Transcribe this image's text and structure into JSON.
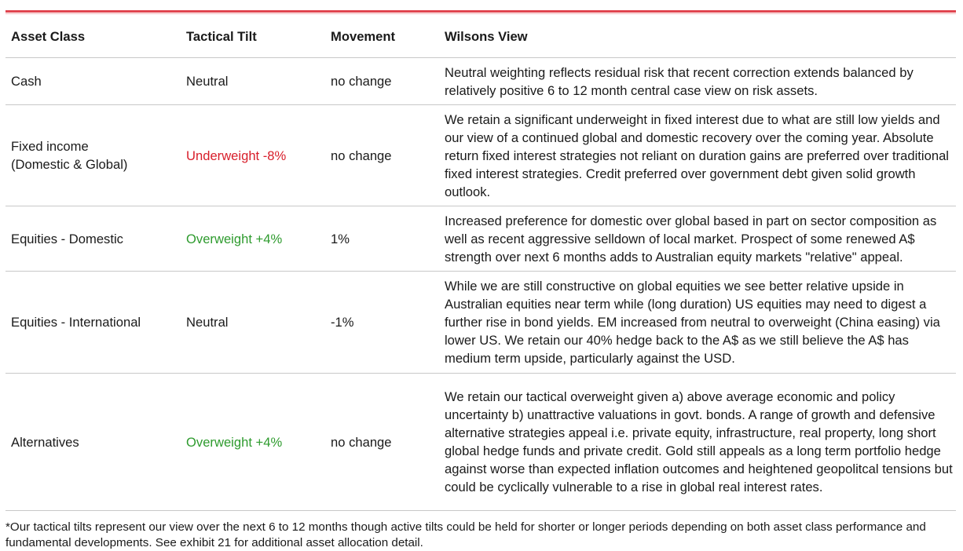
{
  "table": {
    "header": [
      "Asset Class",
      "Tactical Tilt",
      "Movement",
      "Wilsons View"
    ],
    "rows": [
      [
        "Cash",
        "Neutral",
        "no change",
        "Neutral weighting reflects residual risk that recent correction extends balanced by relatively positive 6 to 12 month central case view on risk assets."
      ],
      [
        "Fixed income (Domestic & Global)",
        "Underweight -8%",
        "no change",
        "We retain a significant underweight in fixed interest due to what are still low yields and our view of a continued global and domestic recovery over the coming year. Absolute return fixed interest strategies not reliant on duration gains  are preferred over traditional fixed interest strategies. Credit preferred over government debt given solid growth outlook."
      ],
      [
        "Equities - Domestic",
        "Overweight +4%",
        "1%",
        "Increased preference for domestic over global based in part on sector composition as well as recent aggressive selldown of local market. Prospect of some renewed A$ strength over next 6 months adds to Australian equity markets \"relative\" appeal."
      ],
      [
        "Equities - International",
        "Neutral",
        "-1%",
        "While we are still constructive on global equities we see better relative upside in Australian equities near term while (long duration) US equities may need to digest a further rise in bond yields. EM increased from neutral to overweight (China easing) via lower US. We retain our 40% hedge back to the A$ as we still believe the A$ has medium term upside, particularly against the USD."
      ],
      [
        "Alternatives",
        "Overweight +4%",
        "no change",
        "We retain our tactical overweight  given a) above average economic and policy uncertainty b) unattractive valuations in govt. bonds.  A range of growth and defensive alternative strategies appeal i.e. private equity, infrastructure, real property, long short global hedge funds and private credit. Gold still appeals as a long term portfolio hedge against worse than expected inflation outcomes and heightened geopolitcal tensions but could be cyclically vulnerable to a rise in global real interest rates."
      ]
    ]
  },
  "footnote": "*Our tactical tilts represent our view over the next 6 to 12 months though active tilts could be held for shorter or longer periods depending on both asset class performance and fundamental developments. See exhibit 21 for additional asset allocation detail."
}
